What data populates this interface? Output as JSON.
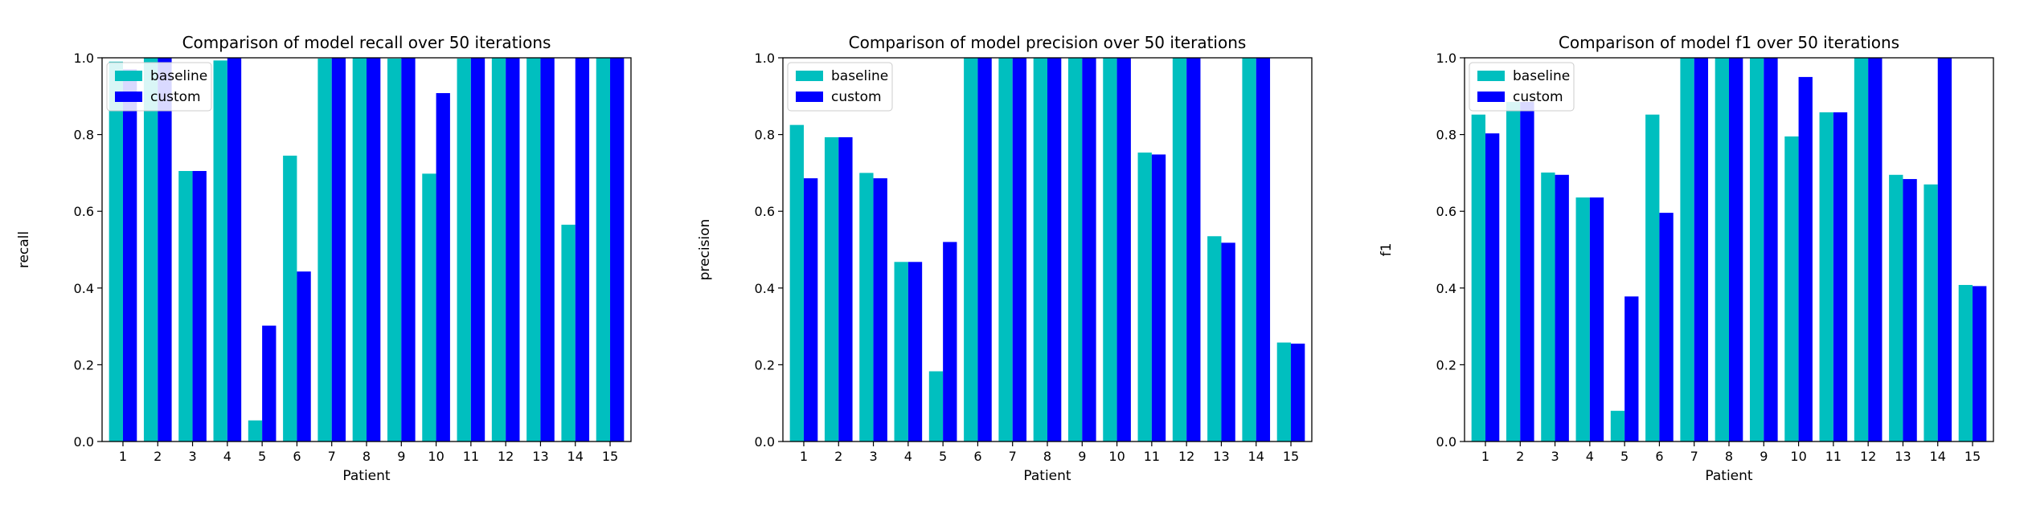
{
  "colors": {
    "baseline": "#00bfbf",
    "custom": "#0000ff"
  },
  "chart_data": [
    {
      "type": "bar",
      "title": "Comparison of model recall over 50 iterations",
      "xlabel": "Patient",
      "ylabel": "recall",
      "ylim": [
        0,
        1.0
      ],
      "yticks": [
        "0.0",
        "0.2",
        "0.4",
        "0.6",
        "0.8",
        "1.0"
      ],
      "legend_position": "upper-left",
      "categories": [
        "1",
        "2",
        "3",
        "4",
        "5",
        "6",
        "7",
        "8",
        "9",
        "10",
        "11",
        "12",
        "13",
        "14",
        "15"
      ],
      "series": [
        {
          "name": "baseline",
          "values": [
            0.99,
            1.0,
            0.705,
            0.993,
            0.055,
            0.745,
            0.998,
            1.0,
            0.998,
            0.698,
            0.998,
            1.0,
            1.0,
            0.565,
            1.0
          ]
        },
        {
          "name": "custom",
          "values": [
            0.97,
            1.0,
            0.705,
            1.0,
            0.302,
            0.443,
            1.0,
            1.0,
            1.0,
            0.908,
            1.0,
            1.0,
            1.0,
            1.0,
            1.0
          ]
        }
      ]
    },
    {
      "type": "bar",
      "title": "Comparison of model precision over 50 iterations",
      "xlabel": "Patient",
      "ylabel": "precision",
      "ylim": [
        0,
        1.0
      ],
      "yticks": [
        "0.0",
        "0.2",
        "0.4",
        "0.6",
        "0.8",
        "1.0"
      ],
      "legend_position": "upper-left",
      "categories": [
        "1",
        "2",
        "3",
        "4",
        "5",
        "6",
        "7",
        "8",
        "9",
        "10",
        "11",
        "12",
        "13",
        "14",
        "15"
      ],
      "series": [
        {
          "name": "baseline",
          "values": [
            0.825,
            0.793,
            0.7,
            0.468,
            0.183,
            1.0,
            1.0,
            1.0,
            1.0,
            1.0,
            0.753,
            1.0,
            0.535,
            1.0,
            0.258
          ]
        },
        {
          "name": "custom",
          "values": [
            0.686,
            0.793,
            0.686,
            0.468,
            0.52,
            1.0,
            1.0,
            1.0,
            1.0,
            1.0,
            0.748,
            1.0,
            0.518,
            1.0,
            0.255
          ]
        }
      ]
    },
    {
      "type": "bar",
      "title": "Comparison of model f1 over 50 iterations",
      "xlabel": "Patient",
      "ylabel": "f1",
      "ylim": [
        0,
        1.0
      ],
      "yticks": [
        "0.0",
        "0.2",
        "0.4",
        "0.6",
        "0.8",
        "1.0"
      ],
      "legend_position": "upper-left",
      "categories": [
        "1",
        "2",
        "3",
        "4",
        "5",
        "6",
        "7",
        "8",
        "9",
        "10",
        "11",
        "12",
        "13",
        "14",
        "15"
      ],
      "series": [
        {
          "name": "baseline",
          "values": [
            0.852,
            0.885,
            0.701,
            0.636,
            0.08,
            0.852,
            1.0,
            1.0,
            1.0,
            0.795,
            0.858,
            1.0,
            0.695,
            0.67,
            0.408
          ]
        },
        {
          "name": "custom",
          "values": [
            0.803,
            0.885,
            0.695,
            0.636,
            0.378,
            0.596,
            1.0,
            1.0,
            1.0,
            0.95,
            0.858,
            1.0,
            0.684,
            1.0,
            0.405
          ]
        }
      ]
    }
  ]
}
